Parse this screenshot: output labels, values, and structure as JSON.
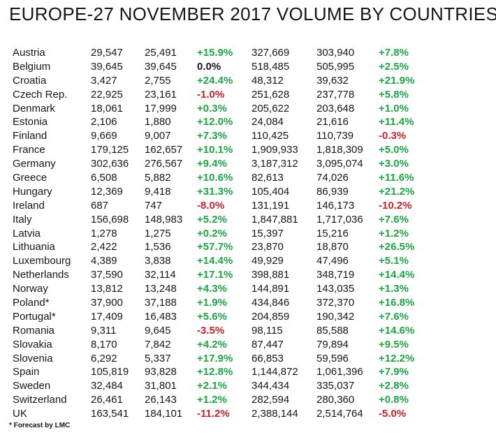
{
  "title": "EUROPE-27 NOVEMBER 2017 VOLUME BY COUNTRIES",
  "footnote": "* Forecast by LMC",
  "colors": {
    "positive": "#1ea345",
    "negative": "#c4232f",
    "neutral_text": "#15151d",
    "background": "#ffffff"
  },
  "chart_data": {
    "type": "table",
    "title": "EUROPE-27 NOVEMBER 2017 VOLUME BY COUNTRIES",
    "columns": [
      "country",
      "month_volume_2017",
      "month_volume_2016",
      "month_change_pct",
      "ytd_volume_2017",
      "ytd_volume_2016",
      "ytd_change_pct"
    ],
    "footnote": "* Forecast by LMC",
    "rows": [
      [
        "Austria",
        "29,547",
        "25,491",
        "+15.9%",
        "327,669",
        "303,940",
        "+7.8%"
      ],
      [
        "Belgium",
        "39,645",
        "39,645",
        "0.0%",
        "518,485",
        "505,995",
        "+2.5%"
      ],
      [
        "Croatia",
        "3,427",
        "2,755",
        "+24.4%",
        "48,312",
        "39,632",
        "+21.9%"
      ],
      [
        "Czech Rep.",
        "22,925",
        "23,161",
        "-1.0%",
        "251,628",
        "237,778",
        "+5.8%"
      ],
      [
        "Denmark",
        "18,061",
        "17,999",
        "+0.3%",
        "205,622",
        "203,648",
        "+1.0%"
      ],
      [
        "Estonia",
        "2,106",
        "1,880",
        "+12.0%",
        "24,084",
        "21,616",
        "+11.4%"
      ],
      [
        "Finland",
        "9,669",
        "9,007",
        "+7.3%",
        "110,425",
        "110,739",
        "-0.3%"
      ],
      [
        "France",
        "179,125",
        "162,657",
        "+10.1%",
        "1,909,933",
        "1,818,309",
        "+5.0%"
      ],
      [
        "Germany",
        "302,636",
        "276,567",
        "+9.4%",
        "3,187,312",
        "3,095,074",
        "+3.0%"
      ],
      [
        "Greece",
        "6,508",
        "5,882",
        "+10.6%",
        "82,613",
        "74,026",
        "+11.6%"
      ],
      [
        "Hungary",
        "12,369",
        "9,418",
        "+31.3%",
        "105,404",
        "86,939",
        "+21.2%"
      ],
      [
        "Ireland",
        "687",
        "747",
        "-8.0%",
        "131,191",
        "146,173",
        "-10.2%"
      ],
      [
        "Italy",
        "156,698",
        "148,983",
        "+5.2%",
        "1,847,881",
        "1,717,036",
        "+7.6%"
      ],
      [
        "Latvia",
        "1,278",
        "1,275",
        "+0.2%",
        "15,397",
        "15,216",
        "+1.2%"
      ],
      [
        "Lithuania",
        "2,422",
        "1,536",
        "+57.7%",
        "23,870",
        "18,870",
        "+26.5%"
      ],
      [
        "Luxembourg",
        "4,389",
        "3,838",
        "+14.4%",
        "49,929",
        "47,496",
        "+5.1%"
      ],
      [
        "Netherlands",
        "37,590",
        "32,114",
        "+17.1%",
        "398,881",
        "348,719",
        "+14.4%"
      ],
      [
        "Norway",
        "13,812",
        "13,248",
        "+4.3%",
        "144,891",
        "143,035",
        "+1.3%"
      ],
      [
        "Poland*",
        "37,900",
        "37,188",
        "+1.9%",
        "434,846",
        "372,370",
        "+16.8%"
      ],
      [
        "Portugal*",
        "17,409",
        "16,483",
        "+5.6%",
        "204,859",
        "190,342",
        "+7.6%"
      ],
      [
        "Romania",
        "9,311",
        "9,645",
        "-3.5%",
        "98,115",
        "85,588",
        "+14.6%"
      ],
      [
        "Slovakia",
        "8,170",
        "7,842",
        "+4.2%",
        "87,447",
        "79,894",
        "+9.5%"
      ],
      [
        "Slovenia",
        "6,292",
        "5,337",
        "+17.9%",
        "66,853",
        "59,596",
        "+12.2%"
      ],
      [
        "Spain",
        "105,819",
        "93,828",
        "+12.8%",
        "1,144,872",
        "1,061,396",
        "+7.9%"
      ],
      [
        "Sweden",
        "32,484",
        "31,801",
        "+2.1%",
        "344,434",
        "335,037",
        "+2.8%"
      ],
      [
        "Switzerland",
        "26,461",
        "26,143",
        "+1.2%",
        "282,594",
        "280,360",
        "+0.8%"
      ],
      [
        "UK",
        "163,541",
        "184,101",
        "-11.2%",
        "2,388,144",
        "2,514,764",
        "-5.0%"
      ]
    ]
  }
}
